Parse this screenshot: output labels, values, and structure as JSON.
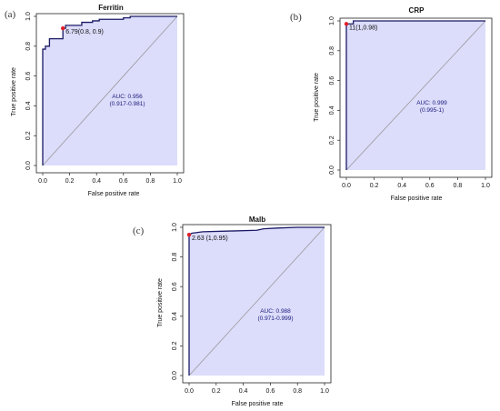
{
  "chart_data": [
    {
      "type": "line",
      "panel": "(a)",
      "title": "Ferritin",
      "xlabel": "False positive rate",
      "ylabel": "True positive rate",
      "xlim": [
        0,
        1
      ],
      "ylim": [
        0,
        1
      ],
      "xticks": [
        "0.0",
        "0.2",
        "0.4",
        "0.6",
        "0.8",
        "1.0"
      ],
      "yticks": [
        "0.0",
        "0.2",
        "0.4",
        "0.6",
        "0.8",
        "1.0"
      ],
      "auc_label": "AUC: 0.956",
      "ci_label": "(0.917-0.981)",
      "point_label": "6.79(0.8, 0.9)",
      "point": {
        "x": 0.15,
        "y": 0.92
      },
      "series": [
        {
          "x": [
            0.0,
            0.0,
            0.02,
            0.02,
            0.05,
            0.05,
            0.15,
            0.15,
            0.17,
            0.17,
            0.29,
            0.29,
            0.37,
            0.37,
            0.42,
            0.42,
            0.6,
            0.6,
            0.65,
            0.65,
            1.0,
            1.0
          ],
          "y": [
            0.0,
            0.78,
            0.78,
            0.8,
            0.8,
            0.85,
            0.85,
            0.92,
            0.92,
            0.94,
            0.94,
            0.96,
            0.96,
            0.97,
            0.97,
            0.98,
            0.98,
            0.99,
            0.99,
            1.0,
            1.0,
            1.0
          ]
        }
      ],
      "grid": false,
      "fill_color": "#dcdcfb",
      "line_color": "#1a1a66",
      "point_color": "#e0202a"
    },
    {
      "type": "line",
      "panel": "(b)",
      "title": "CRP",
      "xlabel": "False positive rate",
      "ylabel": "True positive rate",
      "xlim": [
        0,
        1
      ],
      "ylim": [
        0,
        1
      ],
      "xticks": [
        "0.0",
        "0.2",
        "0.4",
        "0.6",
        "0.8",
        "1.0"
      ],
      "yticks": [
        "0.0",
        "0.2",
        "0.4",
        "0.6",
        "0.8",
        "1.0"
      ],
      "auc_label": "AUC: 0.999",
      "ci_label": "(0.995-1)",
      "point_label": "11(1,0.98)",
      "point": {
        "x": 0.0,
        "y": 0.98
      },
      "series": [
        {
          "x": [
            0.0,
            0.0,
            0.05,
            0.05,
            1.0
          ],
          "y": [
            0.0,
            0.98,
            0.98,
            1.0,
            1.0
          ]
        }
      ],
      "grid": false,
      "fill_color": "#dcdcfb",
      "line_color": "#1a1a66",
      "point_color": "#e0202a"
    },
    {
      "type": "line",
      "panel": "(c)",
      "title": "Malb",
      "xlabel": "False positive rate",
      "ylabel": "True positive rate",
      "xlim": [
        0,
        1
      ],
      "ylim": [
        0,
        1
      ],
      "xticks": [
        "0.0",
        "0.2",
        "0.4",
        "0.6",
        "0.8",
        "1.0"
      ],
      "yticks": [
        "0.0",
        "0.2",
        "0.4",
        "0.6",
        "0.8",
        "1.0"
      ],
      "auc_label": "AUC: 0.988",
      "ci_label": "(0.971-0.999)",
      "point_label": "2.63 (1,0.95)",
      "point": {
        "x": 0.0,
        "y": 0.95
      },
      "series": [
        {
          "x": [
            0.0,
            0.0,
            0.02,
            0.1,
            0.3,
            0.5,
            0.55,
            0.65,
            0.8,
            1.0
          ],
          "y": [
            0.0,
            0.95,
            0.96,
            0.97,
            0.975,
            0.98,
            0.99,
            0.995,
            1.0,
            1.0
          ]
        }
      ],
      "grid": false,
      "fill_color": "#dcdcfb",
      "line_color": "#1a1a66",
      "point_color": "#e0202a"
    }
  ]
}
